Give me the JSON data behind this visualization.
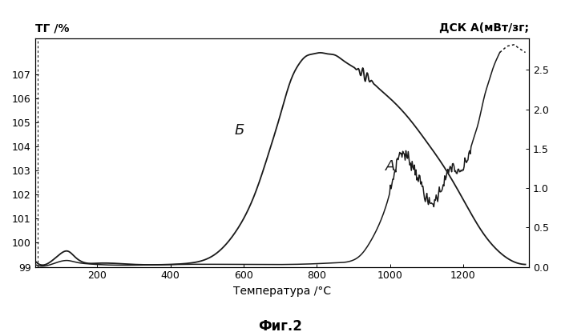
{
  "title_left": "ТГ /%",
  "title_right": "ДСК А(мВт/зг;",
  "xlabel": "Температура /°C",
  "caption": "Фиг.2",
  "label_B": "Б",
  "label_A": "А",
  "xlim": [
    30,
    1380
  ],
  "ylim_left": [
    99,
    108.5
  ],
  "ylim_right": [
    0.0,
    2.9
  ],
  "xticks": [
    200,
    400,
    600,
    800,
    1000,
    1200
  ],
  "yticks_left": [
    99,
    100,
    101,
    102,
    103,
    104,
    105,
    106,
    107
  ],
  "yticks_right": [
    0.0,
    0.5,
    1.0,
    1.5,
    2.0,
    2.5
  ],
  "background_color": "#ffffff",
  "line_color": "#1a1a1a"
}
